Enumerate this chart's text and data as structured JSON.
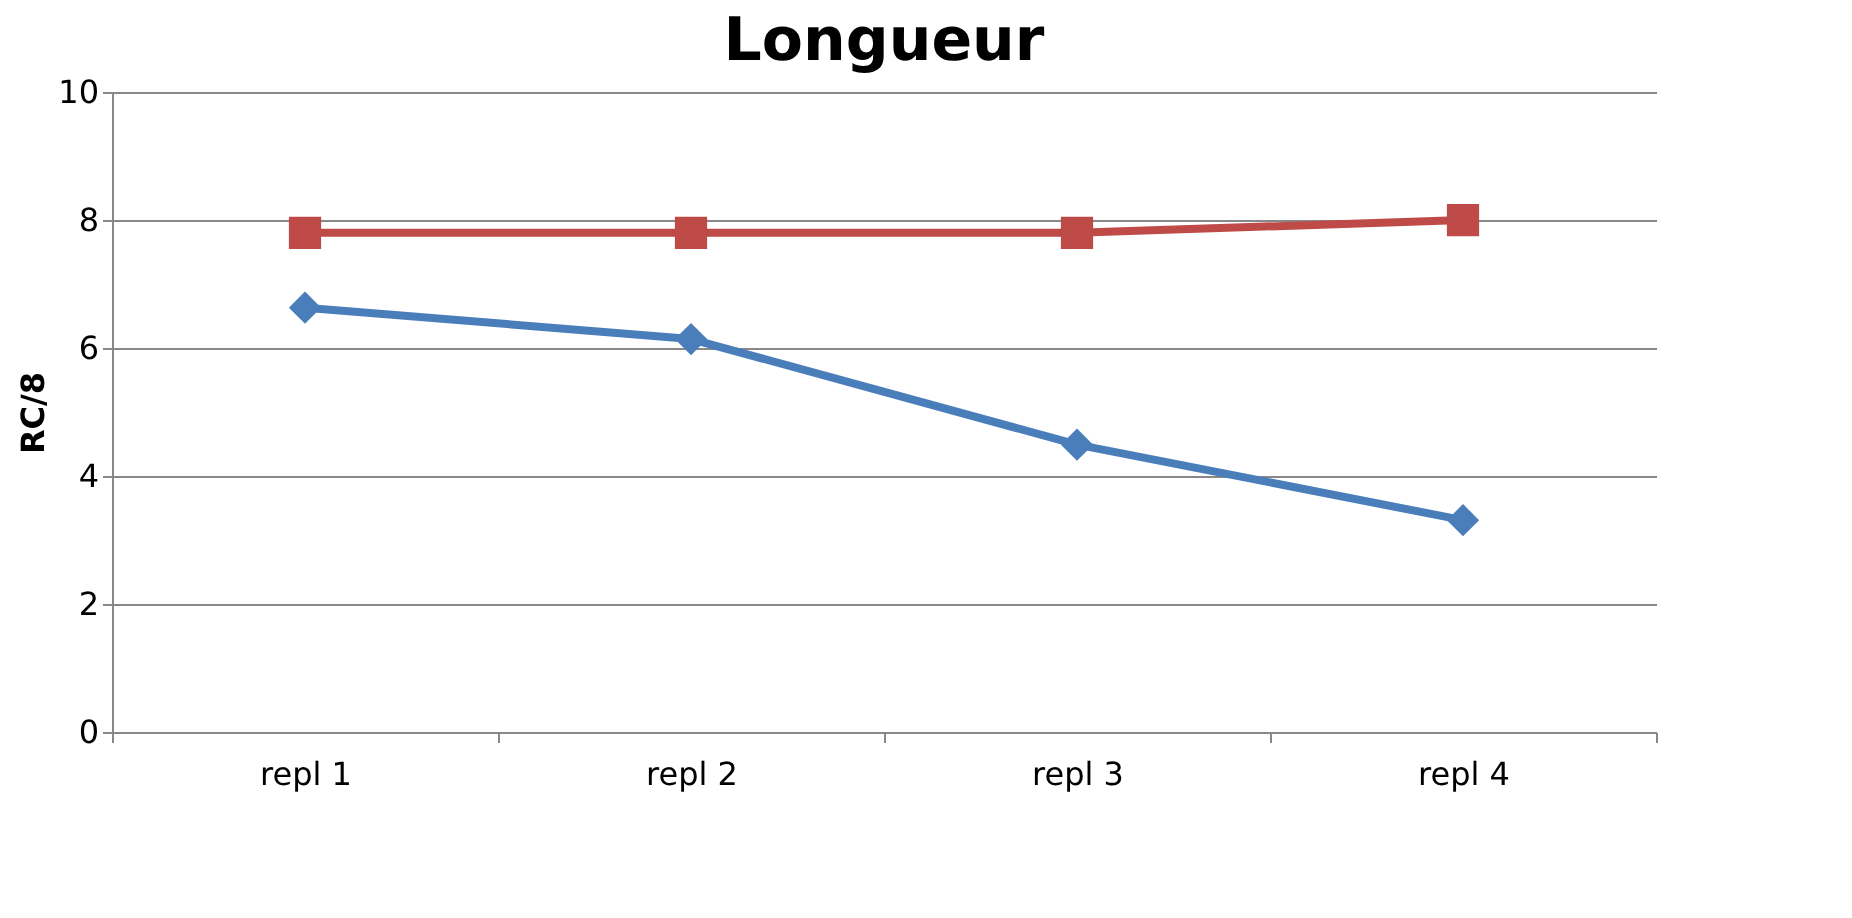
{
  "chart_data": {
    "type": "line",
    "title": "Longueur",
    "ylabel": "RC/8",
    "categories": [
      "repl 1",
      "repl 2",
      "repl 3",
      "repl 4"
    ],
    "series": [
      {
        "color": "#4a7ebb",
        "marker": "diamond",
        "values": [
          6.63,
          6.14,
          4.49,
          3.31
        ]
      },
      {
        "color": "#be4b48",
        "marker": "square",
        "values": [
          7.8,
          7.8,
          7.8,
          8.0
        ]
      }
    ],
    "ylim": [
      0,
      10
    ],
    "yticks": [
      0,
      2,
      4,
      6,
      8,
      10
    ],
    "grid": "y"
  }
}
